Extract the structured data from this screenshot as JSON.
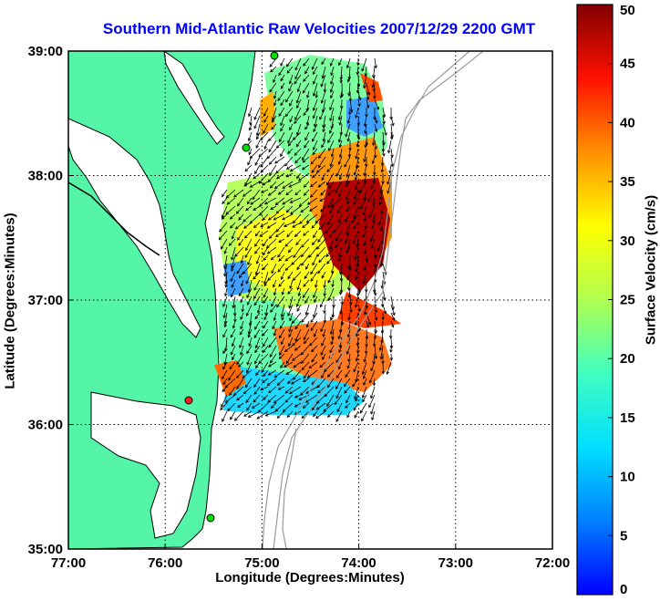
{
  "chart_data": {
    "type": "map",
    "title": "Southern Mid-Atlantic Raw Velocities 2007/12/29 2200 GMT",
    "xlabel": "Longitude (Degrees:Minutes)",
    "ylabel": "Latitude (Degrees:Minutes)",
    "x_ticks": [
      "77:00",
      "76:00",
      "75:00",
      "74:00",
      "73:00",
      "72:00"
    ],
    "y_ticks": [
      "39:00",
      "38:00",
      "37:00",
      "36:00",
      "35:00"
    ],
    "xlim": [
      -77,
      -72
    ],
    "ylim": [
      35,
      39
    ],
    "grid": true,
    "colorbar": {
      "label": "Surface Velocity (cm/s)",
      "ticks": [
        "50",
        "45",
        "40",
        "35",
        "30",
        "25",
        "20",
        "15",
        "10",
        "5",
        "0"
      ],
      "range": [
        0,
        50
      ]
    },
    "colors": {
      "title": "#0000ff",
      "land": "#55f5a8",
      "coast": "#000000",
      "bathymetry": "#9a9a9a"
    }
  }
}
